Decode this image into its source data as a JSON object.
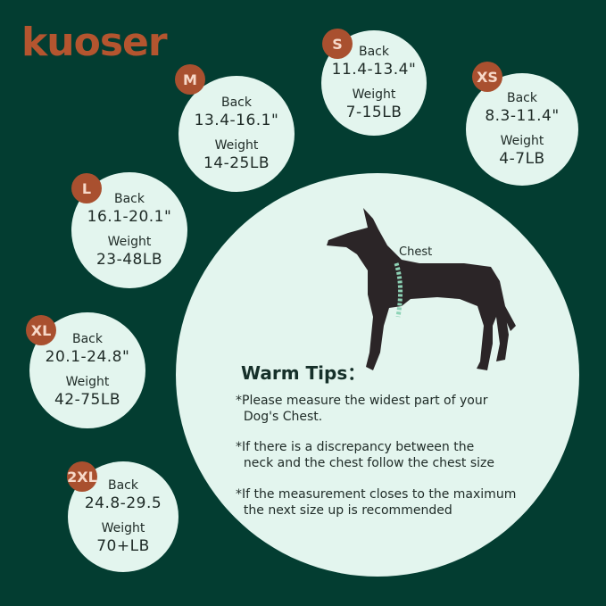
{
  "brand": {
    "logo": "kuoser"
  },
  "colors": {
    "background": "#033d31",
    "circle": "#e3f5ee",
    "badge": "#a9502f",
    "logo": "#b4552f"
  },
  "sizes": [
    {
      "size": "M",
      "back_label": "Back",
      "back": "13.4-16.1\"",
      "weight_label": "Weight",
      "weight": "14-25LB"
    },
    {
      "size": "S",
      "back_label": "Back",
      "back": "11.4-13.4\"",
      "weight_label": "Weight",
      "weight": "7-15LB"
    },
    {
      "size": "XS",
      "back_label": "Back",
      "back": "8.3-11.4\"",
      "weight_label": "Weight",
      "weight": "4-7LB"
    },
    {
      "size": "L",
      "back_label": "Back",
      "back": "16.1-20.1\"",
      "weight_label": "Weight",
      "weight": "23-48LB"
    },
    {
      "size": "XL",
      "back_label": "Back",
      "back": "20.1-24.8\"",
      "weight_label": "Weight",
      "weight": "42-75LB"
    },
    {
      "size": "2XL",
      "back_label": "Back",
      "back": "24.8-29.5",
      "weight_label": "Weight",
      "weight": "70+LB"
    }
  ],
  "diagram": {
    "chest_label": "Chest"
  },
  "tips": {
    "title": "Warm Tips：",
    "items": [
      "*Please measure the widest part of your\n  Dog's Chest.",
      "*If there is a discrepancy between the\n  neck and the chest follow the chest size",
      "*If the measurement closes to the maximum\n  the next size up is recommended"
    ]
  }
}
